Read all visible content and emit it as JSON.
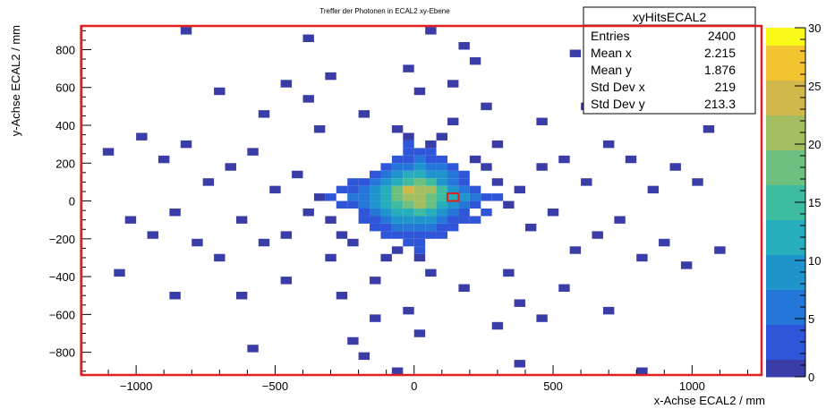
{
  "chart_data": {
    "type": "heatmap",
    "title": "Treffer der Photonen in ECAL2 xy-Ebene",
    "xlabel": "x-Achse ECAL2 / mm",
    "ylabel": "y-Achse ECAL2 / mm",
    "xlim": [
      -1200,
      1250
    ],
    "ylim": [
      -920,
      930
    ],
    "x_ticks": [
      -1000,
      -500,
      0,
      500,
      1000
    ],
    "y_ticks": [
      -800,
      -600,
      -400,
      -200,
      0,
      200,
      400,
      600,
      800
    ],
    "x_tick_labels": [
      "−1000",
      "−500",
      "0",
      "500",
      "1000"
    ],
    "y_tick_labels": [
      "−800",
      "−600",
      "−400",
      "−200",
      "0",
      "200",
      "400",
      "600",
      "800"
    ],
    "bin_width": 40,
    "color_scale": {
      "min": 0,
      "max": 30,
      "ticks": [
        0,
        5,
        10,
        15,
        20,
        25,
        30
      ],
      "tick_labels": [
        "0",
        "5",
        "10",
        "15",
        "20",
        "25",
        "30"
      ],
      "colors": [
        "#3a3da8",
        "#2f55d8",
        "#2477d8",
        "#1f95cc",
        "#27aebc",
        "#3ebca0",
        "#6ec080",
        "#a2be60",
        "#d0b84a",
        "#f3c431",
        "#f9fa17"
      ]
    },
    "cells_note": "each cell: [x_center_mm, y_center_mm, count]",
    "cells": [
      [
        -20,
        60,
        25
      ],
      [
        20,
        60,
        22
      ],
      [
        60,
        60,
        20
      ],
      [
        -20,
        20,
        20
      ],
      [
        20,
        20,
        21
      ],
      [
        60,
        20,
        18
      ],
      [
        100,
        60,
        14
      ],
      [
        100,
        20,
        15
      ],
      [
        -60,
        60,
        18
      ],
      [
        -60,
        20,
        17
      ],
      [
        -20,
        -20,
        19
      ],
      [
        20,
        -20,
        20
      ],
      [
        60,
        -20,
        17
      ],
      [
        -60,
        -20,
        15
      ],
      [
        100,
        -20,
        12
      ],
      [
        20,
        100,
        18
      ],
      [
        -20,
        100,
        16
      ],
      [
        60,
        100,
        14
      ],
      [
        -60,
        100,
        13
      ],
      [
        100,
        100,
        10
      ],
      [
        -100,
        60,
        12
      ],
      [
        -100,
        20,
        13
      ],
      [
        -100,
        -20,
        11
      ],
      [
        140,
        20,
        11
      ],
      [
        140,
        60,
        9
      ],
      [
        140,
        -20,
        10
      ],
      [
        -140,
        20,
        10
      ],
      [
        -140,
        -20,
        9
      ],
      [
        -140,
        60,
        8
      ],
      [
        20,
        -60,
        14
      ],
      [
        -20,
        -60,
        13
      ],
      [
        60,
        -60,
        12
      ],
      [
        -60,
        -60,
        11
      ],
      [
        100,
        -60,
        9
      ],
      [
        -100,
        -60,
        9
      ],
      [
        20,
        140,
        12
      ],
      [
        -20,
        140,
        11
      ],
      [
        60,
        140,
        10
      ],
      [
        -60,
        140,
        9
      ],
      [
        100,
        140,
        8
      ],
      [
        -100,
        100,
        9
      ],
      [
        140,
        100,
        7
      ],
      [
        180,
        20,
        8
      ],
      [
        180,
        -20,
        7
      ],
      [
        180,
        60,
        6
      ],
      [
        -180,
        20,
        7
      ],
      [
        -180,
        -20,
        6
      ],
      [
        -180,
        60,
        5
      ],
      [
        20,
        -100,
        10
      ],
      [
        -20,
        -100,
        9
      ],
      [
        60,
        -100,
        8
      ],
      [
        -60,
        -100,
        8
      ],
      [
        100,
        -100,
        6
      ],
      [
        -100,
        -100,
        7
      ],
      [
        20,
        180,
        8
      ],
      [
        -20,
        180,
        7
      ],
      [
        60,
        180,
        7
      ],
      [
        -60,
        180,
        6
      ],
      [
        100,
        180,
        5
      ],
      [
        -100,
        140,
        6
      ],
      [
        140,
        140,
        5
      ],
      [
        220,
        20,
        5
      ],
      [
        220,
        -20,
        4
      ],
      [
        -220,
        20,
        5
      ],
      [
        -220,
        -20,
        4
      ],
      [
        20,
        -140,
        7
      ],
      [
        -20,
        -140,
        6
      ],
      [
        60,
        -140,
        5
      ],
      [
        -60,
        -140,
        5
      ],
      [
        140,
        -60,
        6
      ],
      [
        -140,
        -60,
        6
      ],
      [
        -140,
        100,
        5
      ],
      [
        180,
        100,
        4
      ],
      [
        -180,
        100,
        3
      ],
      [
        20,
        220,
        5
      ],
      [
        -20,
        220,
        4
      ],
      [
        60,
        220,
        4
      ],
      [
        -60,
        220,
        3
      ],
      [
        220,
        60,
        3
      ],
      [
        -220,
        60,
        3
      ],
      [
        260,
        20,
        3
      ],
      [
        -260,
        -20,
        2
      ],
      [
        20,
        -180,
        4
      ],
      [
        -20,
        -180,
        4
      ],
      [
        60,
        -180,
        3
      ],
      [
        -60,
        -180,
        3
      ],
      [
        140,
        -100,
        4
      ],
      [
        -140,
        -100,
        4
      ],
      [
        100,
        -140,
        3
      ],
      [
        -100,
        -140,
        3
      ],
      [
        180,
        -60,
        3
      ],
      [
        -180,
        -60,
        3
      ],
      [
        100,
        220,
        2
      ],
      [
        -100,
        180,
        3
      ],
      [
        140,
        180,
        2
      ],
      [
        20,
        260,
        3
      ],
      [
        -20,
        260,
        2
      ],
      [
        60,
        260,
        2
      ],
      [
        260,
        -60,
        2
      ],
      [
        -260,
        60,
        2
      ],
      [
        300,
        20,
        2
      ],
      [
        -300,
        20,
        2
      ],
      [
        20,
        -220,
        3
      ],
      [
        -20,
        -220,
        2
      ],
      [
        100,
        -180,
        2
      ],
      [
        -100,
        -180,
        2
      ],
      [
        180,
        -100,
        2
      ],
      [
        -180,
        -100,
        2
      ],
      [
        220,
        -100,
        2
      ],
      [
        -220,
        100,
        2
      ],
      [
        -140,
        140,
        3
      ],
      [
        180,
        140,
        2
      ],
      [
        140,
        -140,
        2
      ],
      [
        -140,
        -140,
        2
      ],
      [
        -20,
        300,
        2
      ],
      [
        60,
        300,
        1
      ],
      [
        20,
        -260,
        2
      ],
      [
        -60,
        -260,
        1
      ],
      [
        340,
        -20,
        1
      ],
      [
        -340,
        20,
        1
      ],
      [
        300,
        100,
        1
      ],
      [
        -300,
        -100,
        1
      ],
      [
        -20,
        340,
        1
      ],
      [
        100,
        340,
        1
      ],
      [
        20,
        -300,
        1
      ],
      [
        -100,
        -300,
        1
      ],
      [
        260,
        180,
        1
      ],
      [
        -260,
        -180,
        1
      ],
      [
        220,
        220,
        1
      ],
      [
        -220,
        -220,
        1
      ],
      [
        380,
        60,
        1
      ],
      [
        -380,
        -60,
        1
      ],
      [
        -60,
        380,
        1
      ],
      [
        60,
        -380,
        1
      ],
      [
        420,
        -140,
        1
      ],
      [
        -420,
        140,
        1
      ],
      [
        140,
        420,
        1
      ],
      [
        -140,
        -420,
        1
      ],
      [
        300,
        300,
        1
      ],
      [
        -300,
        -300,
        1
      ],
      [
        460,
        180,
        1
      ],
      [
        -460,
        -180,
        1
      ],
      [
        500,
        -60,
        1
      ],
      [
        -500,
        60,
        1
      ],
      [
        -180,
        460,
        1
      ],
      [
        180,
        -460,
        1
      ],
      [
        540,
        220,
        1
      ],
      [
        -540,
        -220,
        1
      ],
      [
        340,
        -380,
        1
      ],
      [
        -340,
        380,
        1
      ],
      [
        580,
        -260,
        1
      ],
      [
        -580,
        260,
        1
      ],
      [
        260,
        500,
        1
      ],
      [
        -260,
        -500,
        1
      ],
      [
        620,
        100,
        1
      ],
      [
        -620,
        -100,
        1
      ],
      [
        -380,
        540,
        1
      ],
      [
        380,
        -540,
        1
      ],
      [
        660,
        -180,
        1
      ],
      [
        -660,
        180,
        1
      ],
      [
        20,
        580,
        1
      ],
      [
        -20,
        -580,
        1
      ],
      [
        700,
        300,
        1
      ],
      [
        -700,
        -300,
        1
      ],
      [
        -460,
        -420,
        1
      ],
      [
        460,
        420,
        1
      ],
      [
        740,
        -100,
        1
      ],
      [
        -740,
        100,
        1
      ],
      [
        140,
        620,
        1
      ],
      [
        -140,
        -620,
        1
      ],
      [
        780,
        220,
        1
      ],
      [
        -780,
        -220,
        1
      ],
      [
        -540,
        460,
        1
      ],
      [
        540,
        -460,
        1
      ],
      [
        820,
        -300,
        1
      ],
      [
        -820,
        300,
        1
      ],
      [
        300,
        -660,
        1
      ],
      [
        -300,
        660,
        1
      ],
      [
        860,
        60,
        1
      ],
      [
        -860,
        -60,
        1
      ],
      [
        -20,
        700,
        1
      ],
      [
        20,
        -700,
        1
      ],
      [
        900,
        -220,
        1
      ],
      [
        -900,
        220,
        1
      ],
      [
        620,
        500,
        1
      ],
      [
        -620,
        -500,
        1
      ],
      [
        940,
        180,
        1
      ],
      [
        -940,
        -180,
        1
      ],
      [
        -220,
        -740,
        1
      ],
      [
        220,
        740,
        1
      ],
      [
        980,
        -340,
        1
      ],
      [
        -980,
        340,
        1
      ],
      [
        460,
        -620,
        1
      ],
      [
        -460,
        620,
        1
      ],
      [
        1020,
        100,
        1
      ],
      [
        -1020,
        -100,
        1
      ],
      [
        -700,
        580,
        1
      ],
      [
        700,
        -580,
        1
      ],
      [
        180,
        820,
        1
      ],
      [
        -180,
        -820,
        1
      ],
      [
        -860,
        -500,
        1
      ],
      [
        860,
        500,
        1
      ],
      [
        1100,
        -260,
        1
      ],
      [
        -1100,
        260,
        1
      ],
      [
        -380,
        860,
        1
      ],
      [
        380,
        -860,
        1
      ],
      [
        580,
        780,
        1
      ],
      [
        -580,
        -780,
        1
      ],
      [
        -820,
        900,
        1
      ],
      [
        820,
        -900,
        1
      ],
      [
        1060,
        380,
        1
      ],
      [
        -1060,
        -380,
        1
      ],
      [
        60,
        900,
        1
      ],
      [
        -60,
        -900,
        1
      ]
    ],
    "highlight_cell": [
      140,
      20
    ],
    "stats": {
      "name": "xyHitsECAL2",
      "rows": [
        {
          "label": "Entries",
          "value": "2400"
        },
        {
          "label": "Mean x",
          "value": "2.215"
        },
        {
          "label": "Mean y",
          "value": "1.876"
        },
        {
          "label": "Std Dev x",
          "value": "219"
        },
        {
          "label": "Std Dev y",
          "value": "213.3"
        }
      ]
    },
    "frame_color": "#e02020",
    "highlight_color": "#e02020"
  }
}
